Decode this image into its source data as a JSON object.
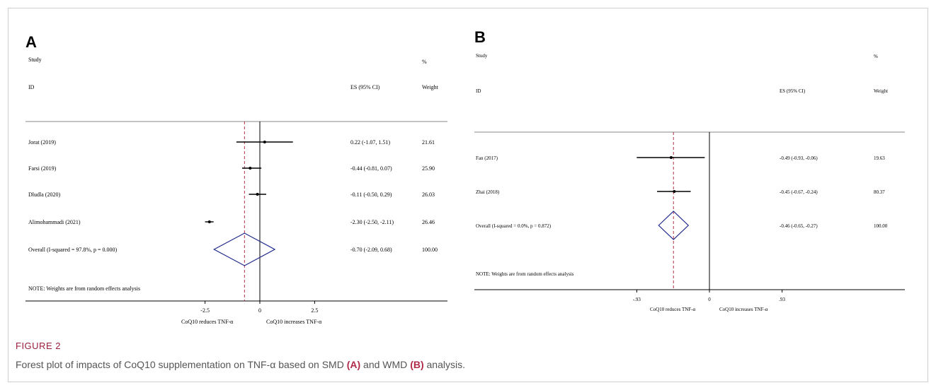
{
  "figure": {
    "label": "FIGURE 2",
    "caption_prefix": "Forest plot of impacts of CoQ10 supplementation on TNF-α based on SMD ",
    "caption_a": "(A)",
    "caption_mid": " and WMD ",
    "caption_b": "(B)",
    "caption_suffix": " analysis."
  },
  "colors": {
    "diamond": "#1f2a8a",
    "null_line": "#000000",
    "overall_line": "#b0304a",
    "caption_title": "#9b1c3c"
  },
  "chart_data": [
    {
      "type": "forest",
      "panel": "A",
      "header_study": "Study",
      "header_id": "ID",
      "header_es": "ES (95% CI)",
      "header_pct": "%",
      "header_weight": "Weight",
      "studies": [
        {
          "id": "Jorat (2019)",
          "es": 0.22,
          "lo": -1.07,
          "hi": 1.51,
          "label": "0.22 (-1.07, 1.51)",
          "weight": "21.61"
        },
        {
          "id": "Farsi (2019)",
          "es": -0.44,
          "lo": -0.81,
          "hi": 0.07,
          "label": "-0.44 (-0.81, 0.07)",
          "weight": "25.90"
        },
        {
          "id": "Dludla (2020)",
          "es": -0.11,
          "lo": -0.5,
          "hi": 0.29,
          "label": "-0.11 (-0.50, 0.29)",
          "weight": "26.03"
        },
        {
          "id": "Alimohammadi (2021)",
          "es": -2.3,
          "lo": -2.5,
          "hi": -2.11,
          "label": "-2.30 (-2.50, -2.11)",
          "weight": "26.46"
        }
      ],
      "overall": {
        "id": "Overall  (I-squared = 97.8%, p = 0.000)",
        "es": -0.7,
        "lo": -2.09,
        "hi": 0.68,
        "label": "-0.70 (-2.09, 0.68)",
        "weight": "100.00"
      },
      "note": "NOTE: Weights are from random effects analysis",
      "xlim": [
        -4.2,
        4.2
      ],
      "ticks": [
        {
          "value": -2.5,
          "label": "-2.5"
        },
        {
          "value": 0,
          "label": "0"
        },
        {
          "value": 2.5,
          "label": "2.5"
        }
      ],
      "xlabel_left": "CoQ10 reduces TNF-α",
      "xlabel_right": "CoQ10 increases TNF-α"
    },
    {
      "type": "forest",
      "panel": "B",
      "header_study": "Study",
      "header_id": "ID",
      "header_es": "ES (95% CI)",
      "header_pct": "%",
      "header_weight": "Weight",
      "studies": [
        {
          "id": "Fan (2017)",
          "es": -0.49,
          "lo": -0.93,
          "hi": -0.06,
          "label": "-0.49 (-0.93, -0.06)",
          "weight": "19.63"
        },
        {
          "id": "Zhai (2018)",
          "es": -0.45,
          "lo": -0.67,
          "hi": -0.24,
          "label": "-0.45 (-0.67, -0.24)",
          "weight": "80.37"
        }
      ],
      "overall": {
        "id": "Overall  (I-squared = 0.0%, p = 0.872)",
        "es": -0.46,
        "lo": -0.65,
        "hi": -0.27,
        "label": "-0.46 (-0.65, -0.27)",
        "weight": "100.00"
      },
      "note": "NOTE: Weights are from random effects analysis",
      "xlim": [
        -1.35,
        1.35
      ],
      "ticks": [
        {
          "value": -0.93,
          "label": "-.93"
        },
        {
          "value": 0,
          "label": "0"
        },
        {
          "value": 0.93,
          "label": ".93"
        }
      ],
      "xlabel_left": "CoQ10 reduces TNF-α",
      "xlabel_right": "CoQ10 increases TNF-α"
    }
  ]
}
